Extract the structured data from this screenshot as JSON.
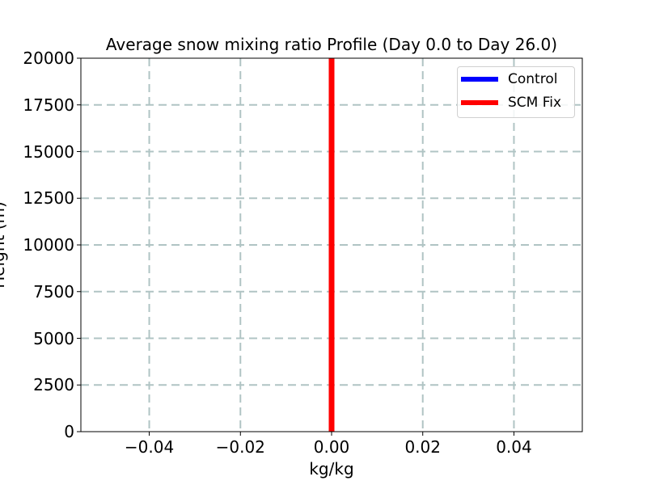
{
  "chart_data": {
    "type": "line",
    "title": "Average snow mixing ratio Profile (Day 0.0 to Day 26.0)",
    "xlabel": "kg/kg",
    "ylabel": "Height (m)",
    "xlim": [
      -0.055,
      0.055
    ],
    "ylim": [
      0,
      20000
    ],
    "xticks": [
      -0.04,
      -0.02,
      0.0,
      0.02,
      0.04
    ],
    "xtick_labels": [
      "−0.04",
      "−0.02",
      "0.00",
      "0.02",
      "0.04"
    ],
    "yticks": [
      0,
      2500,
      5000,
      7500,
      10000,
      12500,
      15000,
      17500,
      20000
    ],
    "ytick_labels": [
      "0",
      "2500",
      "5000",
      "7500",
      "10000",
      "12500",
      "15000",
      "17500",
      "20000"
    ],
    "grid": true,
    "grid_style": "dashed",
    "legend_position": "upper right",
    "series": [
      {
        "name": "Control",
        "color": "#0000ff",
        "x": [
          0.0,
          0.0
        ],
        "y": [
          0,
          20000
        ]
      },
      {
        "name": "SCM Fix",
        "color": "#ff0000",
        "x": [
          0.0,
          0.0
        ],
        "y": [
          0,
          20000
        ]
      }
    ]
  },
  "colors": {
    "grid": "#b0c4c4",
    "axes": "#000000",
    "legend_border": "#d0d0d0"
  }
}
